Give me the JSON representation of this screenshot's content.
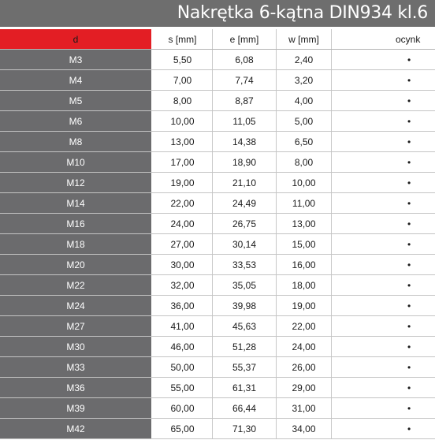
{
  "title": "Nakrętka 6-kątna DIN934 kl.6",
  "headers": {
    "d": "d",
    "s": "s [mm]",
    "e": "e [mm]",
    "w": "w [mm]",
    "ocynk": "ocynk"
  },
  "rows": [
    {
      "d": "M3",
      "s": "5,50",
      "e": "6,08",
      "w": "2,40",
      "ocynk": "•"
    },
    {
      "d": "M4",
      "s": "7,00",
      "e": "7,74",
      "w": "3,20",
      "ocynk": "•"
    },
    {
      "d": "M5",
      "s": "8,00",
      "e": "8,87",
      "w": "4,00",
      "ocynk": "•"
    },
    {
      "d": "M6",
      "s": "10,00",
      "e": "11,05",
      "w": "5,00",
      "ocynk": "•"
    },
    {
      "d": "M8",
      "s": "13,00",
      "e": "14,38",
      "w": "6,50",
      "ocynk": "•"
    },
    {
      "d": "M10",
      "s": "17,00",
      "e": "18,90",
      "w": "8,00",
      "ocynk": "•"
    },
    {
      "d": "M12",
      "s": "19,00",
      "e": "21,10",
      "w": "10,00",
      "ocynk": "•"
    },
    {
      "d": "M14",
      "s": "22,00",
      "e": "24,49",
      "w": "11,00",
      "ocynk": "•"
    },
    {
      "d": "M16",
      "s": "24,00",
      "e": "26,75",
      "w": "13,00",
      "ocynk": "•"
    },
    {
      "d": "M18",
      "s": "27,00",
      "e": "30,14",
      "w": "15,00",
      "ocynk": "•"
    },
    {
      "d": "M20",
      "s": "30,00",
      "e": "33,53",
      "w": "16,00",
      "ocynk": "•"
    },
    {
      "d": "M22",
      "s": "32,00",
      "e": "35,05",
      "w": "18,00",
      "ocynk": "•"
    },
    {
      "d": "M24",
      "s": "36,00",
      "e": "39,98",
      "w": "19,00",
      "ocynk": "•"
    },
    {
      "d": "M27",
      "s": "41,00",
      "e": "45,63",
      "w": "22,00",
      "ocynk": "•"
    },
    {
      "d": "M30",
      "s": "46,00",
      "e": "51,28",
      "w": "24,00",
      "ocynk": "•"
    },
    {
      "d": "M33",
      "s": "50,00",
      "e": "55,37",
      "w": "26,00",
      "ocynk": "•"
    },
    {
      "d": "M36",
      "s": "55,00",
      "e": "61,31",
      "w": "29,00",
      "ocynk": "•"
    },
    {
      "d": "M39",
      "s": "60,00",
      "e": "66,44",
      "w": "31,00",
      "ocynk": "•"
    },
    {
      "d": "M42",
      "s": "65,00",
      "e": "71,30",
      "w": "34,00",
      "ocynk": "•"
    }
  ],
  "colors": {
    "title_bg": "#6e6e6e",
    "header_accent": "#e31e24",
    "label_column_bg": "#6b6b6d"
  }
}
